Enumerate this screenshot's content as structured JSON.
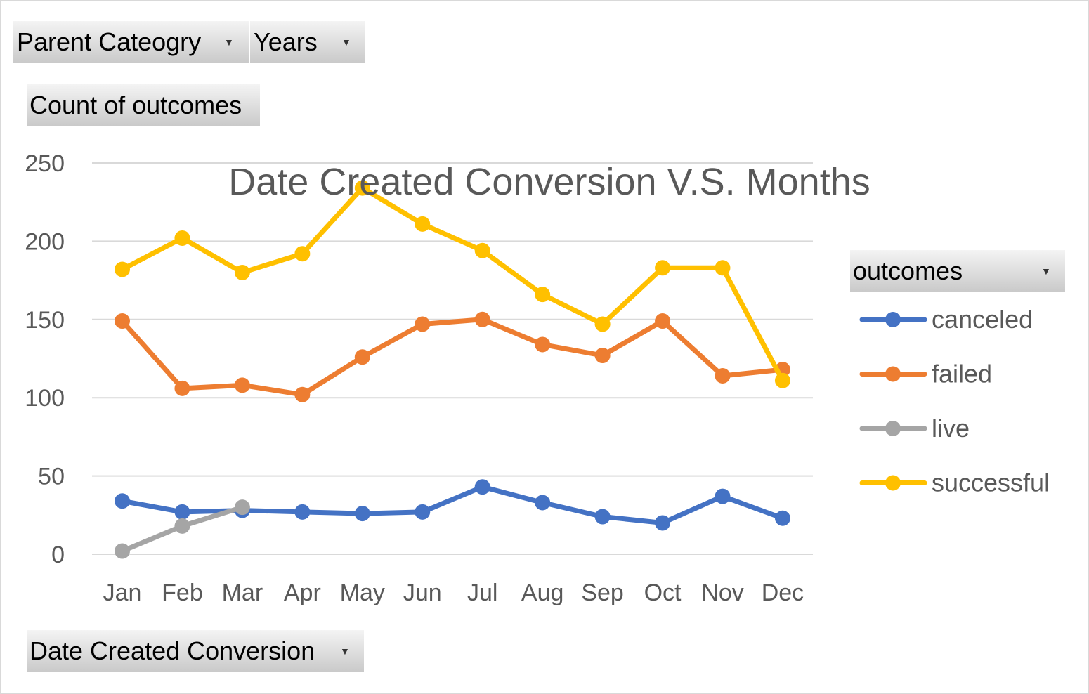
{
  "filters": {
    "parent_category": "Parent Cateogry",
    "years": "Years",
    "values_field": "Count of outcomes",
    "axis_field": "Date Created Conversion",
    "legend_field": "outcomes"
  },
  "chart_data": {
    "type": "line",
    "title": "Date Created Conversion V.S. Months",
    "xlabel": "",
    "ylabel": "",
    "categories": [
      "Jan",
      "Feb",
      "Mar",
      "Apr",
      "May",
      "Jun",
      "Jul",
      "Aug",
      "Sep",
      "Oct",
      "Nov",
      "Dec"
    ],
    "ylim": [
      0,
      250
    ],
    "yticks": [
      0,
      50,
      100,
      150,
      200,
      250
    ],
    "grid": true,
    "legend_position": "right",
    "series": [
      {
        "name": "canceled",
        "color": "#4472c4",
        "values": [
          34,
          27,
          28,
          27,
          26,
          27,
          43,
          33,
          24,
          20,
          37,
          23
        ]
      },
      {
        "name": "failed",
        "color": "#ed7d31",
        "values": [
          149,
          106,
          108,
          102,
          126,
          147,
          150,
          134,
          127,
          149,
          114,
          118
        ]
      },
      {
        "name": "live",
        "color": "#a5a5a5",
        "values": [
          2,
          18,
          30,
          null,
          null,
          null,
          null,
          null,
          null,
          null,
          null,
          null
        ]
      },
      {
        "name": "successful",
        "color": "#ffc000",
        "values": [
          182,
          202,
          180,
          192,
          234,
          211,
          194,
          166,
          147,
          183,
          183,
          111
        ]
      }
    ]
  }
}
